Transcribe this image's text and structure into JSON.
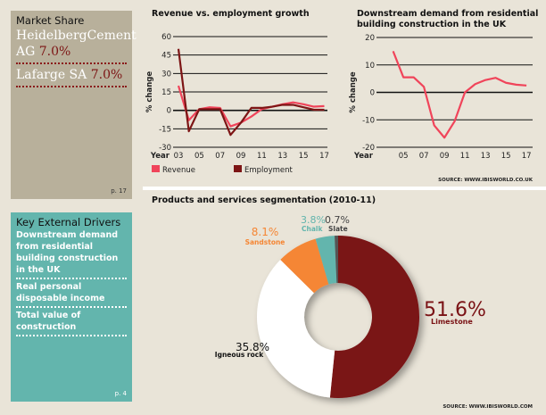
{
  "market_share": {
    "title": "Market Share",
    "items": [
      {
        "name": "HeidelbergCement AG",
        "value": "7.0%"
      },
      {
        "name": "Lafarge SA",
        "value": "7.0%"
      }
    ],
    "page": "p. 17"
  },
  "key_drivers": {
    "title": "Key External Drivers",
    "items": [
      "Downstream demand from residential building construction in the UK",
      "Real personal disposable income",
      "Total value of construction"
    ],
    "page": "p. 4"
  },
  "chart_data": [
    {
      "type": "line",
      "title": "Revenue vs. employment growth",
      "ylabel": "% change",
      "xlabel": "Year",
      "x": [
        2003,
        2004,
        2005,
        2006,
        2007,
        2008,
        2009,
        2010,
        2011,
        2012,
        2013,
        2014,
        2015,
        2016,
        2017
      ],
      "xticks": [
        "03",
        "05",
        "07",
        "09",
        "11",
        "13",
        "15",
        "17"
      ],
      "yticks": [
        60,
        45,
        30,
        15,
        0,
        -15,
        -30
      ],
      "ylim": [
        -30,
        60
      ],
      "grid": true,
      "legend": "bottom",
      "series": [
        {
          "name": "Revenue",
          "color": "#f0445a",
          "values": [
            20,
            -8,
            1,
            2.5,
            2,
            -13,
            -10,
            -5,
            1,
            3,
            5,
            6.5,
            5,
            3,
            3.5
          ]
        },
        {
          "name": "Employment",
          "color": "#7d1515",
          "values": [
            50,
            -17,
            1,
            1,
            1,
            -20,
            -10,
            2,
            2,
            3,
            4.5,
            4.5,
            2.5,
            0.5,
            0.5
          ]
        }
      ]
    },
    {
      "type": "line",
      "title": "Downstream demand from residential building construction in the UK",
      "title_lines": [
        "Downstream demand from residential",
        "building construction in the UK"
      ],
      "ylabel": "% change",
      "xlabel": "Year",
      "x": [
        2004,
        2005,
        2006,
        2007,
        2008,
        2009,
        2010,
        2011,
        2012,
        2013,
        2014,
        2015,
        2016,
        2017
      ],
      "xticks": [
        "05",
        "07",
        "09",
        "11",
        "13",
        "15",
        "17"
      ],
      "yticks": [
        20,
        10,
        0,
        -10,
        -20
      ],
      "ylim": [
        -20,
        20
      ],
      "grid": true,
      "series": [
        {
          "color": "#f0445a",
          "values": [
            15,
            5.5,
            5.5,
            2,
            -12,
            -16.5,
            -10.5,
            0,
            3,
            4.5,
            5.3,
            3.5,
            2.8,
            2.5
          ]
        }
      ],
      "source": "SOURCE: WWW.IBISWORLD.CO.UK"
    },
    {
      "type": "pie",
      "title": "Products and services segmentation (2010-11)",
      "donut": true,
      "slices": [
        {
          "label": "Limestone",
          "value": 51.6,
          "text": "51.6%",
          "color": "#7a1215"
        },
        {
          "label": "Igneous rock",
          "value": 35.8,
          "text": "35.8%",
          "color": "#ffffff"
        },
        {
          "label": "Sandstone",
          "value": 8.1,
          "text": "8.1%",
          "color": "#f58634"
        },
        {
          "label": "Chalk",
          "value": 3.8,
          "text": "3.8%",
          "color": "#63b5ad"
        },
        {
          "label": "Slate",
          "value": 0.7,
          "text": "0.7%",
          "color": "#555555"
        }
      ],
      "source": "SOURCE: WWW.IBISWORLD.COM"
    }
  ]
}
